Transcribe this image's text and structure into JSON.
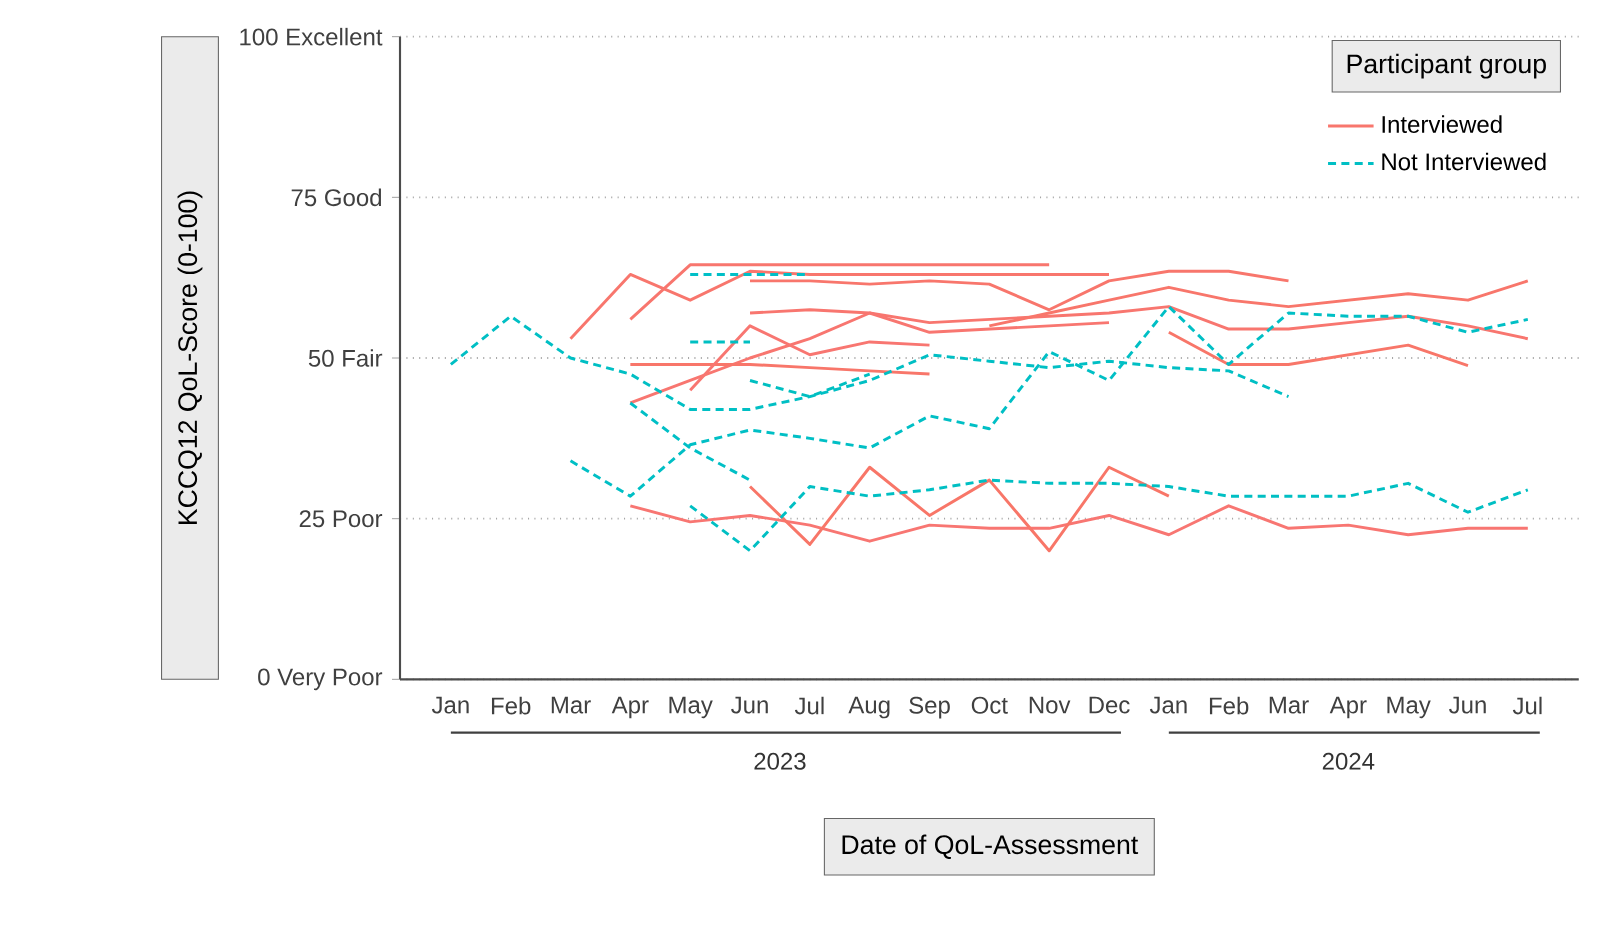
{
  "chart_data": {
    "type": "line",
    "xlabel": "Date of QoL-Assessment",
    "ylabel": "KCCQ12 QoL-Score (0-100)",
    "legend_title": "Participant group",
    "categories": [
      "Jan",
      "Feb",
      "Mar",
      "Apr",
      "May",
      "Jun",
      "Jul",
      "Aug",
      "Sep",
      "Oct",
      "Nov",
      "Dec",
      "Jan",
      "Feb",
      "Mar",
      "Apr",
      "May",
      "Jun",
      "Jul"
    ],
    "annotations": [
      "2023",
      "2024"
    ],
    "ylim": [
      0,
      100
    ],
    "yticks": [
      {
        "value": 0,
        "label": "0 Very Poor"
      },
      {
        "value": 25,
        "label": "25 Poor"
      },
      {
        "value": 50,
        "label": "50 Fair"
      },
      {
        "value": 75,
        "label": "75 Good"
      },
      {
        "value": 100,
        "label": "100 Excellent"
      }
    ],
    "grid": "y",
    "legend": "top right",
    "series": [
      {
        "name": "Interviewed",
        "color": "#f8766d",
        "line_style": "solid",
        "values": [
          null,
          null,
          53,
          63,
          59,
          63.5,
          63,
          63,
          63,
          63,
          63,
          63,
          null,
          null,
          null,
          null,
          null,
          null,
          null
        ]
      },
      {
        "color": "#f8766e",
        "line_style": "solid",
        "values": [
          null,
          null,
          null,
          56,
          64.5,
          64.5,
          64.5,
          64.5,
          64.5,
          64.5,
          64.5,
          null,
          null,
          null,
          null,
          null,
          null,
          null,
          null
        ]
      },
      {
        "color": "#f8766c",
        "line_style": "solid",
        "values": [
          null,
          null,
          null,
          null,
          null,
          62,
          62,
          61.5,
          62,
          61.5,
          57.5,
          62,
          63.5,
          63.5,
          62,
          null,
          null,
          null,
          null
        ]
      },
      {
        "color": "#f8766f",
        "line_style": "solid",
        "values": [
          null,
          null,
          null,
          null,
          null,
          57,
          57.5,
          57,
          55.5,
          56,
          56.5,
          57,
          58,
          54.5,
          54.5,
          55.5,
          56.5,
          55,
          53
        ]
      },
      {
        "color": "#f8766b",
        "line_style": "solid",
        "values": [
          null,
          null,
          null,
          null,
          null,
          null,
          null,
          null,
          null,
          55,
          57,
          59,
          61,
          59,
          58,
          59,
          60,
          59,
          62
        ]
      },
      {
        "color": "#f87670",
        "line_style": "solid",
        "values": [
          null,
          null,
          null,
          43,
          46.5,
          50,
          53,
          57,
          54,
          54.5,
          55,
          55.5,
          null,
          null,
          null,
          null,
          null,
          null,
          null
        ]
      },
      {
        "color": "#f8766a",
        "line_style": "solid",
        "values": [
          null,
          null,
          null,
          49,
          49,
          49,
          48.5,
          48,
          47.5,
          null,
          null,
          null,
          null,
          null,
          null,
          null,
          null,
          null,
          null
        ]
      },
      {
        "color": "#f87671",
        "line_style": "solid",
        "values": [
          null,
          null,
          null,
          null,
          45,
          55,
          50.5,
          52.5,
          52,
          null,
          null,
          null,
          null,
          null,
          null,
          null,
          null,
          null,
          null
        ]
      },
      {
        "color": "#f87669",
        "line_style": "solid",
        "values": [
          null,
          null,
          null,
          null,
          null,
          null,
          null,
          null,
          null,
          null,
          null,
          null,
          54,
          49,
          49,
          50.5,
          52,
          48.8,
          null
        ]
      },
      {
        "color": "#f87672",
        "line_style": "solid",
        "values": [
          null,
          null,
          null,
          27,
          24.5,
          25.5,
          24,
          21.5,
          24,
          23.5,
          23.5,
          25.5,
          22.5,
          27,
          23.5,
          24,
          22.5,
          23.5,
          23.5
        ]
      },
      {
        "color": "#f87668",
        "line_style": "solid",
        "values": [
          null,
          null,
          null,
          null,
          null,
          30,
          21,
          33,
          25.5,
          31,
          20,
          33,
          28.5,
          null,
          null,
          null,
          null,
          null,
          null
        ]
      },
      {
        "name": "Not Interviewed",
        "color": "#00bfc4",
        "line_style": "dashed",
        "values": [
          49,
          56.5,
          50,
          47.5,
          42,
          42,
          44,
          46.5,
          50.5,
          49.5,
          48.5,
          49.5,
          48.5,
          48,
          44,
          null,
          null,
          null,
          null
        ]
      },
      {
        "color": "#00bfc5",
        "line_style": "dashed",
        "values": [
          null,
          null,
          34,
          28.5,
          36.5,
          38.8,
          37.5,
          36,
          41,
          39,
          51,
          46.5,
          58,
          49,
          57,
          56.5,
          56.5,
          54,
          56
        ]
      },
      {
        "color": "#00bfc3",
        "line_style": "dashed",
        "values": [
          null,
          null,
          null,
          null,
          27,
          20,
          30,
          28.5,
          29.5,
          31,
          30.5,
          30.5,
          30,
          28.5,
          28.5,
          28.5,
          30.5,
          26,
          29.5
        ]
      },
      {
        "color": "#00bfc6",
        "line_style": "dashed",
        "values": [
          null,
          null,
          null,
          43,
          36,
          31,
          null,
          null,
          null,
          null,
          null,
          null,
          null,
          null,
          null,
          null,
          null,
          null,
          null
        ]
      },
      {
        "color": "#00bfc2",
        "line_style": "dashed",
        "values": [
          null,
          null,
          null,
          null,
          52.5,
          52.5,
          null,
          null,
          null,
          null,
          null,
          null,
          null,
          null,
          null,
          null,
          null,
          null,
          null
        ]
      },
      {
        "color": "#00bfc7",
        "line_style": "dashed",
        "values": [
          null,
          null,
          null,
          null,
          63,
          63,
          63,
          null,
          null,
          null,
          null,
          null,
          null,
          null,
          null,
          null,
          null,
          null,
          null
        ]
      },
      {
        "color": "#00bfc1",
        "line_style": "dashed",
        "values": [
          null,
          null,
          null,
          null,
          null,
          46.5,
          44,
          47.5,
          null,
          null,
          null,
          null,
          null,
          null,
          null,
          null,
          null,
          null,
          null
        ]
      }
    ]
  }
}
